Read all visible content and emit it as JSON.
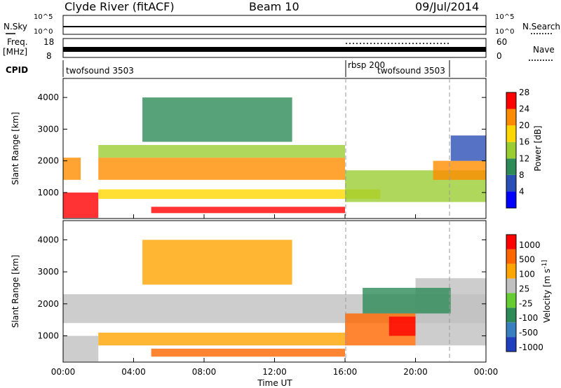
{
  "header": {
    "station": "Clyde River (fitACF)",
    "beam": "Beam 10",
    "date": "09/Jul/2014"
  },
  "strip_panels": {
    "nsky_label": "N.Sky",
    "nsky_ticks": [
      "10^5",
      "10^0"
    ],
    "nsearch_label": "N.Search",
    "nsearch_ticks": [
      "10^5",
      "10^0"
    ],
    "freq_label": "Freq.",
    "freq_unit": "[MHz]",
    "freq_ticks": [
      "18",
      "8"
    ],
    "nave_label": "Nave",
    "nave_ticks": [
      "60",
      "0"
    ],
    "cpid_label": "CPID",
    "cpid_segments": [
      {
        "label": "twofsound 3503",
        "start_hour": 0,
        "end_hour": 16
      },
      {
        "label": "rbsp 200",
        "start_hour": 16,
        "end_hour": 22
      },
      {
        "label": "twofsound 3503",
        "start_hour": 22,
        "end_hour": 24
      }
    ]
  },
  "chart_data": [
    {
      "type": "heatmap",
      "panel": "power",
      "ylabel": "Slant Range [km]",
      "ylim": [
        180,
        4600
      ],
      "yticks": [
        1000,
        2000,
        3000,
        4000
      ],
      "xlim": [
        0,
        24
      ],
      "colorbar": {
        "label": "Power [dB]",
        "ticks": [
          "4",
          "8",
          "12",
          "16",
          "20",
          "24",
          "28"
        ],
        "colors": [
          "#0000ff",
          "#2a4fb5",
          "#2e8b57",
          "#9acd32",
          "#ffd700",
          "#ff8c00",
          "#ff0000"
        ]
      },
      "scatter_bands": [
        {
          "x_start": 0.0,
          "x_end": 2.0,
          "range_start": 200,
          "range_end": 1000,
          "color": "#ff0000"
        },
        {
          "x_start": 0.0,
          "x_end": 1.0,
          "range_start": 1400,
          "range_end": 2100,
          "color": "#ff8c00"
        },
        {
          "x_start": 2.0,
          "x_end": 16.0,
          "range_start": 1400,
          "range_end": 2100,
          "color": "#ff8c00"
        },
        {
          "x_start": 2.0,
          "x_end": 16.0,
          "range_start": 2100,
          "range_end": 2500,
          "color": "#9acd32"
        },
        {
          "x_start": 4.5,
          "x_end": 13.0,
          "range_start": 2600,
          "range_end": 4000,
          "color": "#2e8b57"
        },
        {
          "x_start": 2.0,
          "x_end": 18.0,
          "range_start": 800,
          "range_end": 1100,
          "color": "#ffd700"
        },
        {
          "x_start": 5.0,
          "x_end": 16.0,
          "range_start": 350,
          "range_end": 550,
          "color": "#ff0000"
        },
        {
          "x_start": 16.0,
          "x_end": 24.0,
          "range_start": 700,
          "range_end": 1700,
          "color": "#9acd32"
        },
        {
          "x_start": 21.0,
          "x_end": 24.0,
          "range_start": 1400,
          "range_end": 2000,
          "color": "#ff8c00"
        },
        {
          "x_start": 22.0,
          "x_end": 24.0,
          "range_start": 2000,
          "range_end": 2800,
          "color": "#2a4fb5"
        }
      ]
    },
    {
      "type": "heatmap",
      "panel": "velocity",
      "ylabel": "Slant Range [km]",
      "xlabel": "Time UT",
      "ylim": [
        180,
        4600
      ],
      "yticks": [
        1000,
        2000,
        3000,
        4000
      ],
      "xlim": [
        0,
        24
      ],
      "xticks": [
        "00:00",
        "04:00",
        "08:00",
        "12:00",
        "16:00",
        "20:00",
        "00:00"
      ],
      "colorbar": {
        "label": "Velocity [m s^-1]",
        "ticks": [
          "1000",
          "500",
          "100",
          "25",
          "-25",
          "-100",
          "-500",
          "-1000"
        ],
        "colors": [
          "#1f3fbf",
          "#3a7fbf",
          "#2e8b57",
          "#66cc33",
          "#c0c0c0",
          "#ffa500",
          "#ff6600",
          "#ff0000"
        ]
      },
      "scatter_bands": [
        {
          "x_start": 0.0,
          "x_end": 2.0,
          "range_start": 200,
          "range_end": 1000,
          "color": "#c0c0c0"
        },
        {
          "x_start": 0.0,
          "x_end": 24.0,
          "range_start": 1400,
          "range_end": 2300,
          "color": "#c0c0c0"
        },
        {
          "x_start": 4.5,
          "x_end": 13.0,
          "range_start": 2600,
          "range_end": 4000,
          "color": "#ffa500"
        },
        {
          "x_start": 2.0,
          "x_end": 16.0,
          "range_start": 700,
          "range_end": 1100,
          "color": "#ffa500"
        },
        {
          "x_start": 5.0,
          "x_end": 16.0,
          "range_start": 350,
          "range_end": 600,
          "color": "#ff6600"
        },
        {
          "x_start": 16.0,
          "x_end": 20.0,
          "range_start": 700,
          "range_end": 1700,
          "color": "#ff6600"
        },
        {
          "x_start": 18.5,
          "x_end": 20.0,
          "range_start": 1000,
          "range_end": 1600,
          "color": "#ff0000"
        },
        {
          "x_start": 20.0,
          "x_end": 24.0,
          "range_start": 700,
          "range_end": 2800,
          "color": "#c0c0c0"
        },
        {
          "x_start": 17.0,
          "x_end": 22.0,
          "range_start": 1700,
          "range_end": 2500,
          "color": "#2e8b57"
        }
      ]
    }
  ]
}
